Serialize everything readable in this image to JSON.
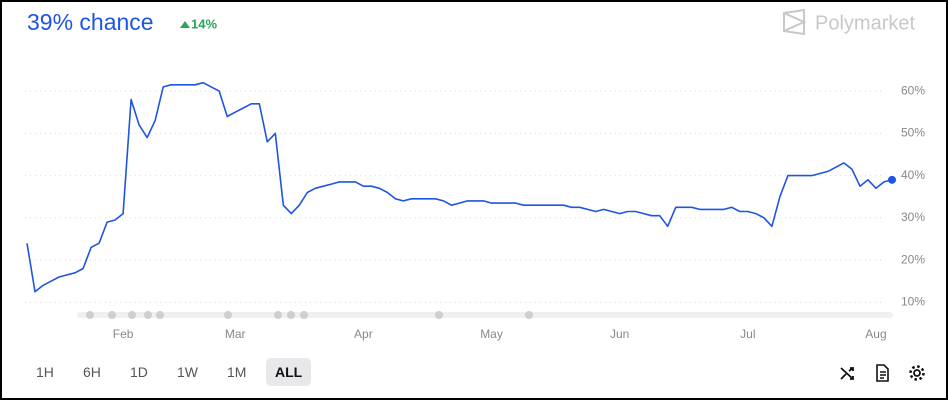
{
  "chart_data": {
    "type": "line",
    "title": "39% chance",
    "change": "14%",
    "brand": "Polymarket",
    "color": "#1f55e0",
    "categories": [
      null,
      null,
      null,
      null,
      null,
      null,
      null,
      null,
      null,
      null,
      null,
      null,
      "Feb",
      null,
      null,
      null,
      null,
      null,
      null,
      null,
      null,
      null,
      null,
      null,
      null,
      null,
      "Mar",
      null,
      null,
      null,
      null,
      null,
      null,
      null,
      null,
      null,
      null,
      null,
      null,
      null,
      null,
      null,
      "Apr",
      null,
      null,
      null,
      null,
      null,
      null,
      null,
      null,
      null,
      null,
      null,
      null,
      null,
      null,
      null,
      "May",
      null,
      null,
      null,
      null,
      null,
      null,
      null,
      null,
      null,
      null,
      null,
      null,
      null,
      null,
      null,
      "Jun",
      null,
      null,
      null,
      null,
      null,
      null,
      null,
      null,
      null,
      null,
      null,
      null,
      null,
      null,
      null,
      "Jul",
      null,
      null,
      null,
      null,
      null,
      null,
      null,
      null,
      null,
      null,
      null,
      null,
      null,
      null,
      null,
      "Aug",
      null,
      null
    ],
    "values": [
      24,
      12.5,
      14,
      15,
      16,
      16.5,
      17,
      18,
      23,
      24,
      29,
      29.5,
      31,
      58,
      52,
      49,
      53,
      61,
      61.5,
      61.5,
      61.5,
      61.5,
      62,
      61,
      60,
      54,
      55,
      56,
      57,
      57,
      48,
      50,
      33,
      31,
      33,
      36,
      37,
      37.5,
      38,
      38.5,
      38.5,
      38.5,
      37.5,
      37.5,
      37,
      36,
      34.5,
      34,
      34.5,
      34.5,
      34.5,
      34.5,
      34,
      33,
      33.5,
      34,
      34,
      34,
      33.5,
      33.5,
      33.5,
      33.5,
      33,
      33,
      33,
      33,
      33,
      33,
      32.5,
      32.5,
      32,
      31.5,
      32,
      31.5,
      31,
      31.5,
      31.5,
      31,
      30.5,
      30.5,
      28,
      32.5,
      32.5,
      32.5,
      32,
      32,
      32,
      32,
      32.5,
      31.5,
      31.5,
      31,
      30,
      28,
      35,
      40,
      40,
      40,
      40,
      40.5,
      41,
      42,
      43,
      41.5,
      37.5,
      39,
      37,
      38.5,
      39
    ],
    "ylim": [
      7,
      65
    ],
    "yticks": [
      {
        "value": 10,
        "label": "10%"
      },
      {
        "value": 20,
        "label": "20%"
      },
      {
        "value": 30,
        "label": "30%"
      },
      {
        "value": 40,
        "label": "40%"
      },
      {
        "value": 50,
        "label": "50%"
      },
      {
        "value": 60,
        "label": "60%"
      }
    ],
    "grid": true
  },
  "controls": {
    "ranges": [
      "1H",
      "6H",
      "1D",
      "1W",
      "1M",
      "ALL"
    ],
    "selected": "ALL"
  }
}
